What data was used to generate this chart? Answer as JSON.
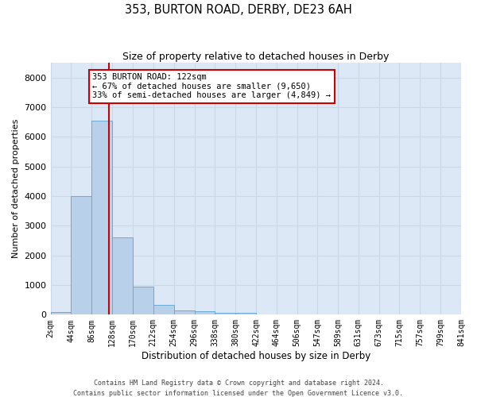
{
  "title": "353, BURTON ROAD, DERBY, DE23 6AH",
  "subtitle": "Size of property relative to detached houses in Derby",
  "xlabel": "Distribution of detached houses by size in Derby",
  "ylabel": "Number of detached properties",
  "footer_line1": "Contains HM Land Registry data © Crown copyright and database right 2024.",
  "footer_line2": "Contains public sector information licensed under the Open Government Licence v3.0.",
  "bar_color": "#b8d0ea",
  "bar_edge_color": "#6aaad4",
  "grid_color": "#c8d8e8",
  "bg_color": "#dce8f5",
  "annotation_text": "353 BURTON ROAD: 122sqm\n← 67% of detached houses are smaller (9,650)\n33% of semi-detached houses are larger (4,849) →",
  "vline_x": 122,
  "vline_color": "#cc0000",
  "ylim": [
    0,
    8500
  ],
  "yticks": [
    0,
    1000,
    2000,
    3000,
    4000,
    5000,
    6000,
    7000,
    8000
  ],
  "bin_edges": [
    2,
    44,
    86,
    128,
    170,
    212,
    254,
    296,
    338,
    380,
    422,
    464,
    506,
    547,
    589,
    631,
    673,
    715,
    757,
    799,
    841
  ],
  "bar_heights": [
    80,
    4000,
    6550,
    2600,
    950,
    320,
    140,
    120,
    75,
    70,
    0,
    0,
    0,
    0,
    0,
    0,
    0,
    0,
    0,
    0
  ]
}
